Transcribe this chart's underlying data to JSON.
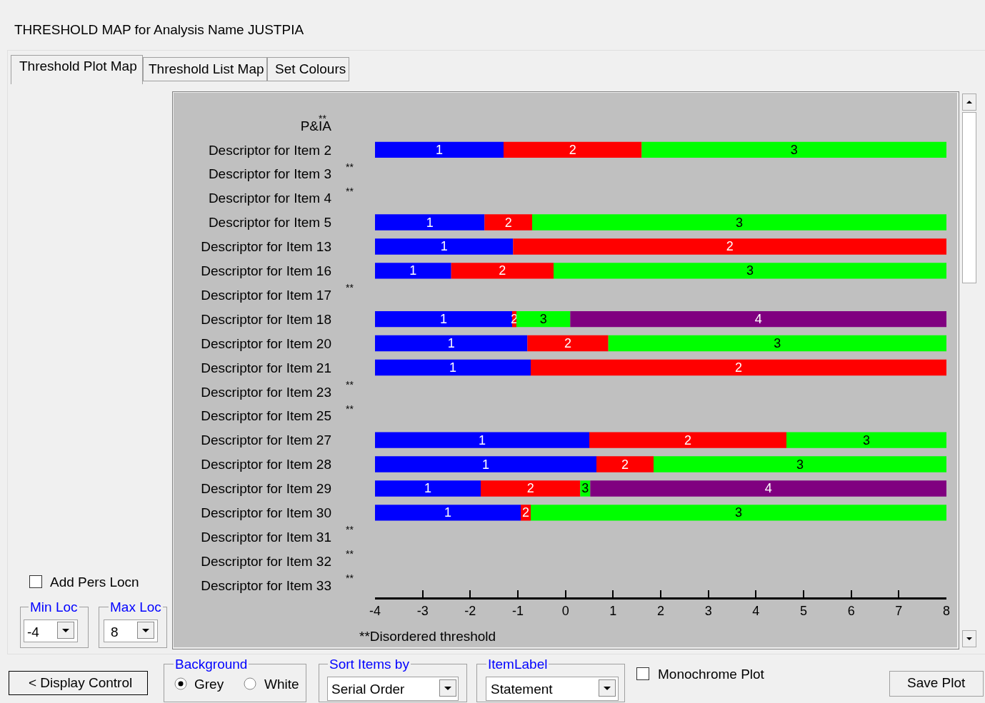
{
  "chart_data": {
    "type": "bar",
    "orientation": "horizontal",
    "title": "THRESHOLD MAP for Analysis Name JUSTPIA",
    "categories": [
      "P&IA",
      "Descriptor for Item 2",
      "Descriptor for Item 3",
      "Descriptor for Item 4",
      "Descriptor for Item 5",
      "Descriptor for Item 13",
      "Descriptor for Item 16",
      "Descriptor for Item 17",
      "Descriptor for Item 18",
      "Descriptor for Item 20",
      "Descriptor for Item 21",
      "Descriptor for Item 23",
      "Descriptor for Item 25",
      "Descriptor for Item 27",
      "Descriptor for Item 28",
      "Descriptor for Item 29",
      "Descriptor for Item 30",
      "Descriptor for Item 31",
      "Descriptor for Item 32",
      "Descriptor for Item 33"
    ],
    "series": [
      {
        "name": "1",
        "color": "#0000ff",
        "base": [
          null,
          -4,
          null,
          null,
          -4,
          -4,
          -4,
          null,
          -4,
          -4,
          -4,
          null,
          null,
          -4,
          -4,
          -4,
          -4,
          null,
          null,
          null
        ],
        "values": [
          null,
          2.7,
          null,
          null,
          2.3,
          2.9,
          1.6,
          null,
          2.88,
          3.2,
          3.27,
          null,
          null,
          4.5,
          4.65,
          2.22,
          3.06,
          null,
          null,
          null
        ]
      },
      {
        "name": "2",
        "color": "#ff0000",
        "base": [
          null,
          -1.3,
          null,
          null,
          -1.7,
          -1.1,
          -2.4,
          null,
          -1.12,
          -0.8,
          -0.73,
          null,
          null,
          0.5,
          0.65,
          -1.78,
          -0.94,
          null,
          null,
          null
        ],
        "values": [
          null,
          2.9,
          null,
          null,
          1.0,
          9.1,
          2.15,
          null,
          0.09,
          1.7,
          8.73,
          null,
          null,
          4.14,
          1.2,
          2.09,
          0.21,
          null,
          null,
          null
        ]
      },
      {
        "name": "3",
        "color": "#00ff00",
        "base": [
          null,
          1.6,
          null,
          null,
          -0.7,
          null,
          -0.25,
          null,
          -1.03,
          0.9,
          null,
          null,
          null,
          4.64,
          1.85,
          0.31,
          -0.73,
          null,
          null,
          null
        ],
        "values": [
          null,
          6.4,
          null,
          null,
          8.7,
          null,
          8.25,
          null,
          1.13,
          7.1,
          null,
          null,
          null,
          3.36,
          6.15,
          0.21,
          8.73,
          null,
          null,
          null
        ]
      },
      {
        "name": "4",
        "color": "#800080",
        "base": [
          null,
          null,
          null,
          null,
          null,
          null,
          null,
          null,
          0.1,
          null,
          null,
          null,
          null,
          null,
          null,
          0.52,
          null,
          null,
          null,
          null
        ],
        "values": [
          null,
          null,
          null,
          null,
          null,
          null,
          null,
          null,
          7.9,
          null,
          null,
          null,
          null,
          null,
          null,
          7.48,
          null,
          null,
          null,
          null
        ]
      }
    ],
    "xlim": [
      -4,
      8
    ],
    "xticks": [
      -4,
      -3,
      -2,
      -1,
      0,
      1,
      2,
      3,
      4,
      5,
      6,
      7,
      8
    ],
    "grid": false,
    "legend": false,
    "annotations": [
      "Threshold Plot Map",
      "Threshold List Map",
      "Set Colours",
      "Add Pers Locn",
      "Min Loc",
      "-4",
      "Max Loc",
      "8",
      "**Disordered threshold",
      "< Display Control",
      "Background",
      "Grey",
      "White",
      "Sort Items by",
      "Serial Order",
      "ItemLabel",
      "Statement",
      "Monochrome Plot",
      "Save Plot",
      "**",
      "**",
      "**",
      "**",
      "**",
      "**",
      "**",
      "**",
      "**"
    ]
  }
}
